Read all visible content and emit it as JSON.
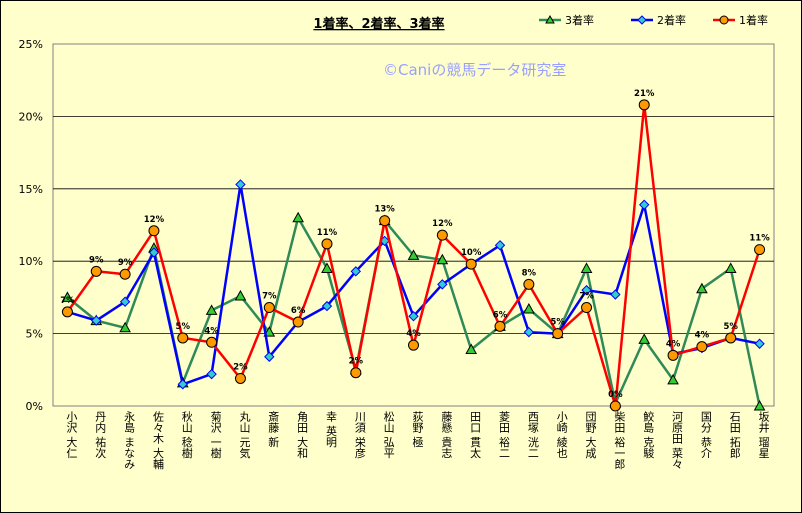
{
  "chart_data": {
    "type": "line",
    "title": "1着率、2着率、3着率",
    "watermark": "©Caniの競馬データ研究室",
    "ylim": [
      0,
      25
    ],
    "yticks": [
      "0%",
      "5%",
      "10%",
      "15%",
      "20%",
      "25%"
    ],
    "grid": true,
    "legend_position": "top-right",
    "categories": [
      "小沢 大仁",
      "丹内 祐次",
      "永島 まなみ",
      "佐々木 大輔",
      "秋山 稔樹",
      "菊沢 一樹",
      "丸山 元気",
      "斎藤 新",
      "角田 大和",
      "幸 英明",
      "川須 栄彦",
      "松山 弘平",
      "荻野 極",
      "藤懸 貴志",
      "田口 貫太",
      "菱田 裕二",
      "西塚 洸二",
      "小崎 綾也",
      "団野 大成",
      "柴田 裕一郎",
      "鮫島 克駿",
      "河原田 菜々",
      "国分 恭介",
      "石田 拓郎",
      "坂井 瑠星"
    ],
    "series": [
      {
        "name": "3着率",
        "color": "#2e8b57",
        "marker": "triangle",
        "marker_color": "#33cc33",
        "values": [
          7.5,
          5.9,
          5.4,
          10.9,
          1.6,
          6.6,
          7.6,
          5.1,
          13.0,
          9.5,
          2.5,
          12.8,
          10.4,
          10.1,
          3.9,
          5.5,
          6.7,
          5.0,
          9.5,
          0.2,
          4.6,
          1.8,
          8.1,
          9.5,
          0.0
        ]
      },
      {
        "name": "2着率",
        "color": "#0000ff",
        "marker": "diamond",
        "marker_color": "#33cccc",
        "values": [
          6.5,
          5.9,
          7.2,
          10.6,
          1.5,
          2.2,
          15.3,
          3.4,
          5.8,
          6.9,
          9.3,
          11.4,
          6.2,
          8.4,
          9.8,
          11.1,
          5.1,
          5.0,
          8.0,
          7.7,
          13.9,
          3.6,
          4.0,
          4.7,
          4.3
        ]
      },
      {
        "name": "1着率",
        "color": "#ff0000",
        "marker": "circle",
        "marker_color": "#ff9900",
        "values": [
          6.5,
          9.3,
          9.1,
          12.1,
          4.7,
          4.4,
          1.9,
          6.8,
          5.8,
          11.2,
          2.3,
          12.8,
          4.2,
          11.8,
          9.8,
          5.5,
          8.4,
          5.0,
          6.8,
          0.0,
          20.8,
          3.5,
          4.1,
          4.7,
          10.8
        ],
        "labels": [
          "7%",
          "9%",
          "9%",
          "12%",
          "5%",
          "4%",
          "2%",
          "7%",
          "6%",
          "11%",
          "2%",
          "13%",
          "4%",
          "12%",
          "10%",
          "6%",
          "8%",
          "5%",
          "7%",
          "0%",
          "21%",
          "4%",
          "4%",
          "5%",
          "11%"
        ]
      }
    ]
  }
}
